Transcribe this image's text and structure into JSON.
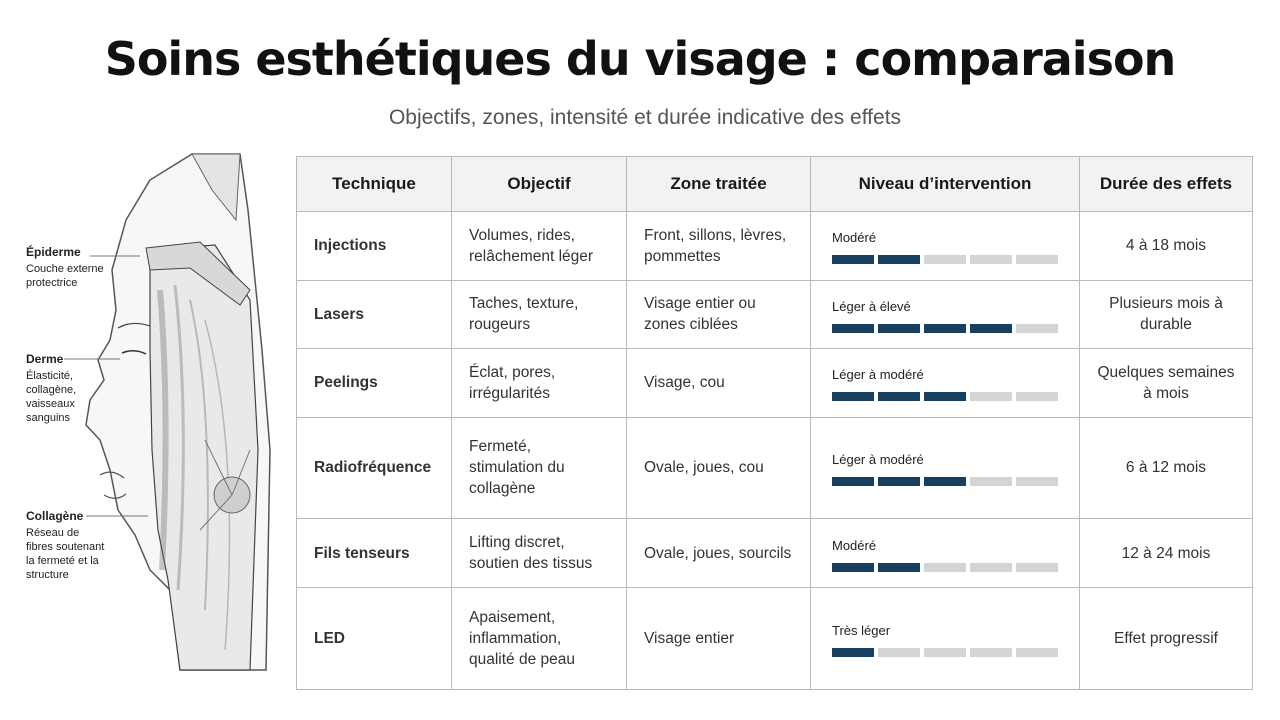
{
  "title": "Soins esthétiques du visage : comparaison",
  "subtitle": "Objectifs, zones, intensité et durée indicative des effets",
  "anatomy": {
    "epiderme": {
      "title": "Épiderme",
      "text": "Couche externe protectrice"
    },
    "derme": {
      "title": "Derme",
      "text": "Élasticité, collagène, vaisseaux sanguins"
    },
    "collagene": {
      "title": "Collagène",
      "text": "Réseau de fibres soutenant la fermeté et la structure"
    }
  },
  "table": {
    "headers": [
      "Technique",
      "Objectif",
      "Zone traitée",
      "Niveau d’intervention",
      "Durée des effets"
    ],
    "rows": [
      {
        "technique": "Injections",
        "objectif": "Volumes, rides, relâchement léger",
        "zone": "Front, sillons, lèvres, pommettes",
        "level_label": "Modéré",
        "level": 2,
        "level_max": 5,
        "duree": "4 à 18 mois"
      },
      {
        "technique": "Lasers",
        "objectif": "Taches, texture, rougeurs",
        "zone": "Visage entier ou zones ciblées",
        "level_label": "Léger à élevé",
        "level": 4,
        "level_max": 5,
        "duree": "Plusieurs mois à durable"
      },
      {
        "technique": "Peelings",
        "objectif": "Éclat, pores, irrégularités",
        "zone": "Visage, cou",
        "level_label": "Léger à modéré",
        "level": 3,
        "level_max": 5,
        "duree": "Quelques semaines à mois"
      },
      {
        "technique": "Radiofréquence",
        "objectif": "Fermeté, stimulation du collagène",
        "zone": "Ovale, joues, cou",
        "level_label": "Léger à modéré",
        "level": 3,
        "level_max": 5,
        "duree": "6 à 12 mois"
      },
      {
        "technique": "Fils tenseurs",
        "objectif": "Lifting discret, soutien des tissus",
        "zone": "Ovale, joues, sourcils",
        "level_label": "Modéré",
        "level": 2,
        "level_max": 5,
        "duree": "12 à 24 mois"
      },
      {
        "technique": "LED",
        "objectif": "Apaisement, inflammation, qualité de peau",
        "zone": "Visage entier",
        "level_label": "Très léger",
        "level": 1,
        "level_max": 5,
        "duree": "Effet progressif"
      }
    ]
  },
  "colors": {
    "bar_filled": "#173f5f",
    "bar_empty": "#d4d4d4",
    "header_bg": "#f2f2f2"
  }
}
